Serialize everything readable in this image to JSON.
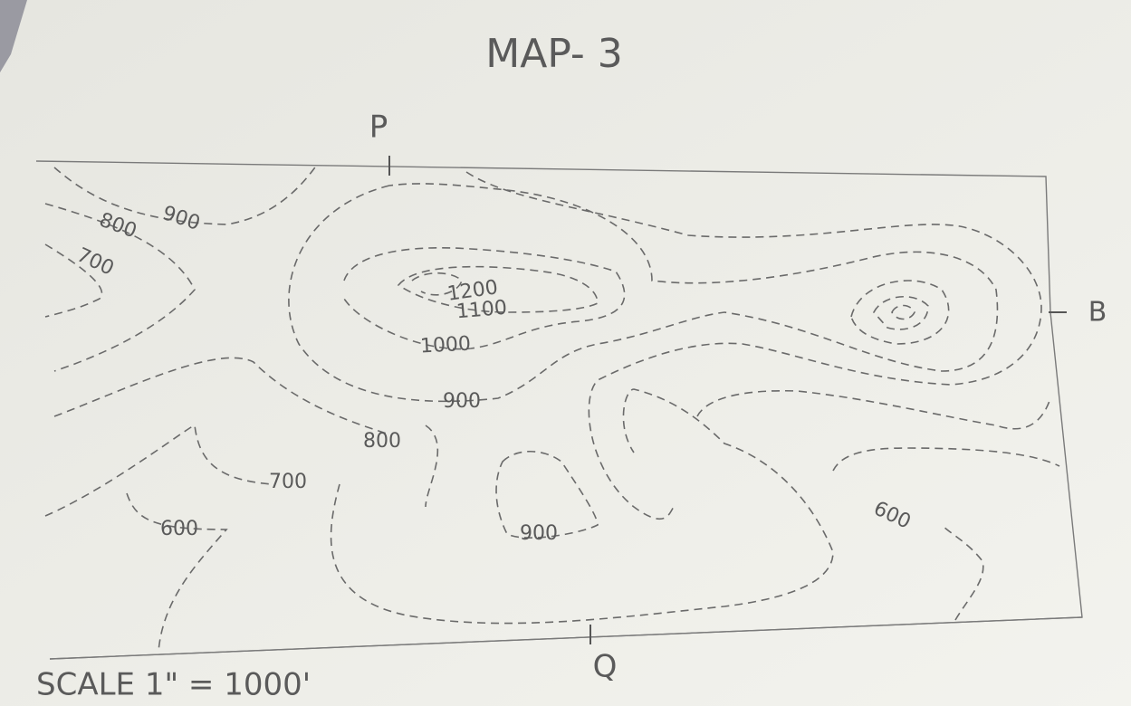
{
  "title": "MAP- 3",
  "markers": {
    "p": "P",
    "q": "Q",
    "b": "B"
  },
  "contour_labels": [
    "900",
    "800",
    "700",
    "1200",
    "1100",
    "1000",
    "900",
    "800",
    "700",
    "600",
    "900",
    "600"
  ],
  "scale": "SCALE 1\" = 1000'"
}
